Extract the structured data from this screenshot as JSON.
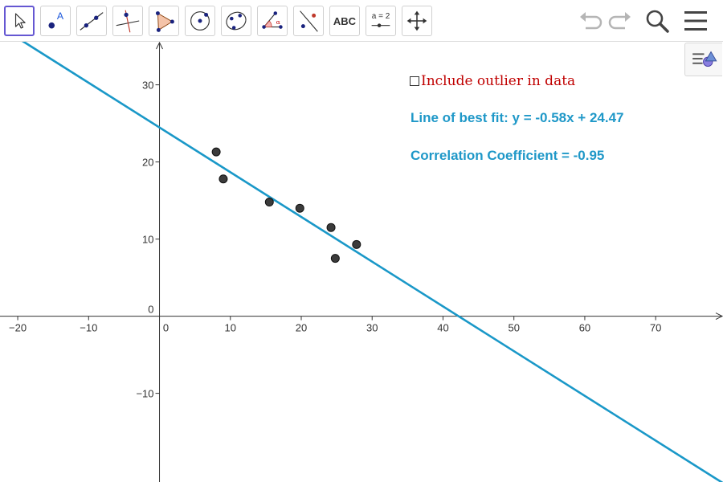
{
  "toolbar": {
    "tools": [
      {
        "name": "move-tool",
        "icon": "cursor-arrow-icon",
        "selected": true
      },
      {
        "name": "point-tool",
        "icon": "point-label-icon"
      },
      {
        "name": "line-tool",
        "icon": "line-through-points-icon"
      },
      {
        "name": "perpendicular-line-tool",
        "icon": "perpendicular-line-icon"
      },
      {
        "name": "polygon-tool",
        "icon": "polygon-icon"
      },
      {
        "name": "circle-tool",
        "icon": "circle-center-point-icon"
      },
      {
        "name": "conic-tool",
        "icon": "ellipse-points-icon"
      },
      {
        "name": "angle-tool",
        "icon": "angle-icon",
        "angle_symbol": "α"
      },
      {
        "name": "reflect-tool",
        "icon": "reflect-about-line-icon"
      },
      {
        "name": "text-tool",
        "icon": "text-icon",
        "label": "ABC"
      },
      {
        "name": "slider-tool",
        "icon": "slider-icon",
        "label": "a = 2"
      },
      {
        "name": "move-graphics-view-tool",
        "icon": "move-arrows-icon"
      }
    ],
    "right_icons": [
      "undo-icon",
      "redo-icon",
      "search-icon",
      "menu-icon"
    ],
    "style_bar_icon": "style-bar-toggle-icon"
  },
  "checkbox": {
    "label": "Include outlier in data",
    "checked": false
  },
  "info": {
    "best_fit": "Line of best fit: y = -0.58x + 24.47",
    "correlation": "Correlation Coefficient =  -0.95"
  },
  "colors": {
    "line": "#1a98c8",
    "info_text": "#1f98c8",
    "checkbox_label": "#c00000",
    "point_fill": "#3b3b3b",
    "selected_tool_border": "#6557d2"
  },
  "chart_data": {
    "type": "scatter",
    "xlim": [
      -22.5,
      79.5
    ],
    "ylim": [
      -21.5,
      41
    ],
    "x_ticks": [
      -20,
      -10,
      0,
      10,
      20,
      30,
      40,
      50,
      60,
      70
    ],
    "y_ticks": [
      -10,
      0,
      10,
      20,
      30
    ],
    "x_tick_labels": [
      "−20",
      "−10",
      "0",
      "10",
      "20",
      "30",
      "40",
      "50",
      "60",
      "70"
    ],
    "y_tick_labels": [
      "−10",
      "0",
      "10",
      "20",
      "30"
    ],
    "points": [
      {
        "x": 8,
        "y": 21.3
      },
      {
        "x": 9,
        "y": 17.8
      },
      {
        "x": 15.5,
        "y": 14.8
      },
      {
        "x": 19.8,
        "y": 14
      },
      {
        "x": 24.2,
        "y": 11.5
      },
      {
        "x": 24.8,
        "y": 7.5
      },
      {
        "x": 27.8,
        "y": 9.3
      }
    ],
    "best_fit_line": {
      "slope": -0.58,
      "intercept": 24.47
    },
    "grid": false
  }
}
